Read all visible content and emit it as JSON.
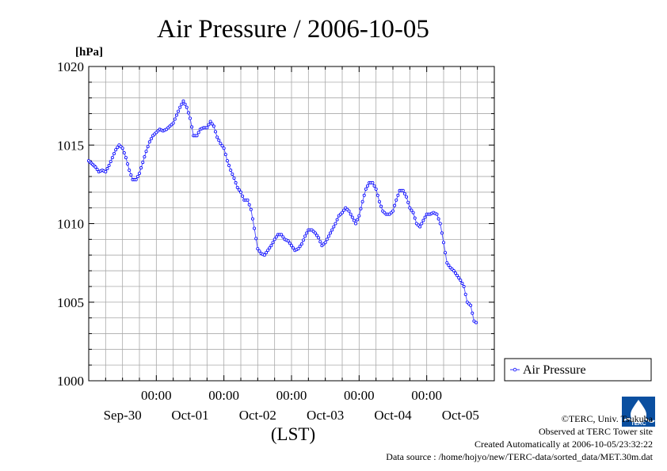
{
  "chart_data": {
    "type": "line",
    "title": "Air Pressure / 2006-10-05",
    "ylabel": "[hPa]",
    "xlabel": "(LST)",
    "ylim": [
      1000,
      1020
    ],
    "yticks": [
      1000,
      1005,
      1010,
      1015,
      1020
    ],
    "xlim_days": [
      0,
      6
    ],
    "grid": true,
    "day_labels": [
      {
        "day": 0.5,
        "label": "Sep-30"
      },
      {
        "day": 1.5,
        "label": "Oct-01"
      },
      {
        "day": 2.5,
        "label": "Oct-02"
      },
      {
        "day": 3.5,
        "label": "Oct-03"
      },
      {
        "day": 4.5,
        "label": "Oct-04"
      },
      {
        "day": 5.5,
        "label": "Oct-05"
      }
    ],
    "time_labels": [
      {
        "day": 1,
        "label": "00:00"
      },
      {
        "day": 2,
        "label": "00:00"
      },
      {
        "day": 3,
        "label": "00:00"
      },
      {
        "day": 4,
        "label": "00:00"
      },
      {
        "day": 5,
        "label": "00:00"
      }
    ],
    "legend": {
      "position": "right",
      "label": "Air Pressure"
    },
    "series": [
      {
        "name": "Air Pressure",
        "color": "#0000ff",
        "points": [
          [
            0.0,
            1014.0
          ],
          [
            0.1,
            1013.6
          ],
          [
            0.15,
            1013.3
          ],
          [
            0.2,
            1013.4
          ],
          [
            0.25,
            1013.3
          ],
          [
            0.3,
            1013.7
          ],
          [
            0.35,
            1014.2
          ],
          [
            0.4,
            1014.7
          ],
          [
            0.45,
            1015.0
          ],
          [
            0.5,
            1014.8
          ],
          [
            0.55,
            1014.2
          ],
          [
            0.6,
            1013.4
          ],
          [
            0.65,
            1012.8
          ],
          [
            0.7,
            1012.8
          ],
          [
            0.75,
            1013.2
          ],
          [
            0.8,
            1013.9
          ],
          [
            0.85,
            1014.6
          ],
          [
            0.9,
            1015.2
          ],
          [
            0.95,
            1015.6
          ],
          [
            1.0,
            1015.8
          ],
          [
            1.05,
            1016.0
          ],
          [
            1.1,
            1015.9
          ],
          [
            1.15,
            1016.0
          ],
          [
            1.2,
            1016.2
          ],
          [
            1.25,
            1016.4
          ],
          [
            1.3,
            1016.9
          ],
          [
            1.35,
            1017.4
          ],
          [
            1.4,
            1017.8
          ],
          [
            1.45,
            1017.4
          ],
          [
            1.5,
            1016.7
          ],
          [
            1.55,
            1015.6
          ],
          [
            1.6,
            1015.6
          ],
          [
            1.65,
            1016.0
          ],
          [
            1.7,
            1016.1
          ],
          [
            1.75,
            1016.1
          ],
          [
            1.8,
            1016.5
          ],
          [
            1.85,
            1016.2
          ],
          [
            1.9,
            1015.5
          ],
          [
            1.95,
            1015.1
          ],
          [
            2.0,
            1014.8
          ],
          [
            2.05,
            1014.0
          ],
          [
            2.1,
            1013.4
          ],
          [
            2.15,
            1012.9
          ],
          [
            2.2,
            1012.3
          ],
          [
            2.25,
            1012.0
          ],
          [
            2.3,
            1011.5
          ],
          [
            2.35,
            1011.5
          ],
          [
            2.4,
            1010.9
          ],
          [
            2.45,
            1009.7
          ],
          [
            2.5,
            1008.4
          ],
          [
            2.55,
            1008.1
          ],
          [
            2.6,
            1008.0
          ],
          [
            2.65,
            1008.3
          ],
          [
            2.7,
            1008.6
          ],
          [
            2.75,
            1009.0
          ],
          [
            2.8,
            1009.3
          ],
          [
            2.85,
            1009.3
          ],
          [
            2.9,
            1009.0
          ],
          [
            2.95,
            1008.9
          ],
          [
            3.0,
            1008.6
          ],
          [
            3.05,
            1008.3
          ],
          [
            3.1,
            1008.4
          ],
          [
            3.15,
            1008.7
          ],
          [
            3.2,
            1009.2
          ],
          [
            3.25,
            1009.6
          ],
          [
            3.3,
            1009.6
          ],
          [
            3.35,
            1009.4
          ],
          [
            3.4,
            1009.1
          ],
          [
            3.45,
            1008.6
          ],
          [
            3.5,
            1008.8
          ],
          [
            3.55,
            1009.2
          ],
          [
            3.6,
            1009.6
          ],
          [
            3.65,
            1010.0
          ],
          [
            3.7,
            1010.5
          ],
          [
            3.75,
            1010.7
          ],
          [
            3.8,
            1011.0
          ],
          [
            3.85,
            1010.8
          ],
          [
            3.9,
            1010.4
          ],
          [
            3.95,
            1010.0
          ],
          [
            4.0,
            1010.5
          ],
          [
            4.05,
            1011.4
          ],
          [
            4.1,
            1012.2
          ],
          [
            4.15,
            1012.6
          ],
          [
            4.2,
            1012.6
          ],
          [
            4.25,
            1012.2
          ],
          [
            4.3,
            1011.4
          ],
          [
            4.35,
            1010.8
          ],
          [
            4.4,
            1010.6
          ],
          [
            4.45,
            1010.6
          ],
          [
            4.5,
            1010.8
          ],
          [
            4.55,
            1011.5
          ],
          [
            4.6,
            1012.1
          ],
          [
            4.65,
            1012.1
          ],
          [
            4.7,
            1011.7
          ],
          [
            4.75,
            1011.0
          ],
          [
            4.8,
            1010.7
          ],
          [
            4.85,
            1010.0
          ],
          [
            4.9,
            1009.8
          ],
          [
            4.95,
            1010.2
          ],
          [
            5.0,
            1010.6
          ],
          [
            5.05,
            1010.6
          ],
          [
            5.1,
            1010.7
          ],
          [
            5.15,
            1010.6
          ],
          [
            5.2,
            1010.0
          ],
          [
            5.25,
            1008.8
          ],
          [
            5.3,
            1007.5
          ],
          [
            5.35,
            1007.2
          ],
          [
            5.4,
            1007.0
          ],
          [
            5.45,
            1006.7
          ],
          [
            5.5,
            1006.4
          ],
          [
            5.55,
            1006.0
          ],
          [
            5.6,
            1005.0
          ],
          [
            5.65,
            1004.8
          ],
          [
            5.7,
            1003.8
          ],
          [
            5.73,
            1003.7
          ]
        ]
      }
    ]
  },
  "credits": {
    "copyright": "©TERC, Univ. Tsukuba",
    "observed": "Observed at TERC Tower site",
    "created": "Created Automatically at 2006-10-05/23:32:22",
    "source": "Data source : /home/hojyo/new/TERC-data/sorted_data/MET.30m.dat"
  },
  "logo": {
    "label": "TERC",
    "color": "#0a4fa0"
  }
}
